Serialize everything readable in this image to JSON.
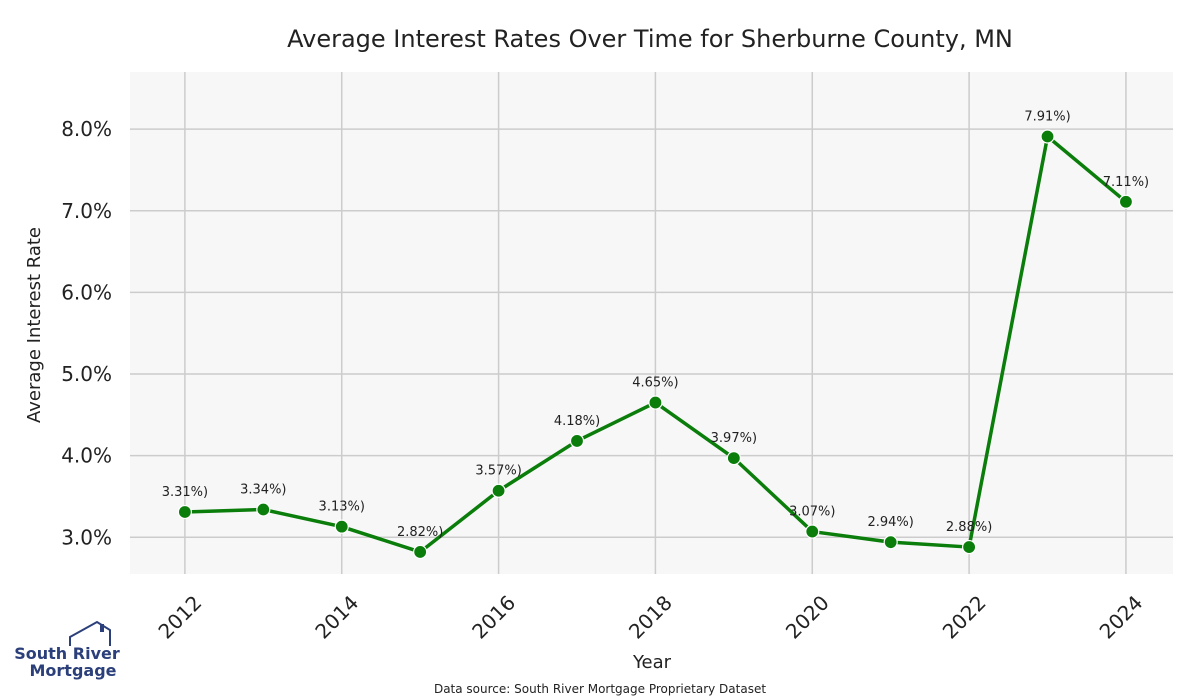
{
  "chart_data": {
    "type": "line",
    "title": "Average Interest Rates Over Time for Sherburne County, MN",
    "xlabel": "Year",
    "ylabel": "Average Interest Rate",
    "x": [
      2012,
      2013,
      2014,
      2015,
      2016,
      2017,
      2018,
      2019,
      2020,
      2021,
      2022,
      2023,
      2024
    ],
    "series": [
      {
        "values": [
          3.31,
          3.34,
          3.13,
          2.82,
          3.57,
          4.18,
          4.65,
          3.97,
          3.07,
          2.94,
          2.88,
          7.91,
          7.11
        ],
        "labels": [
          "3.31%)",
          "3.34%)",
          "3.13%)",
          "2.82%)",
          "3.57%)",
          "4.18%)",
          "4.65%)",
          "3.97%)",
          "3.07%)",
          "2.94%)",
          "2.88%)",
          "7.91%)",
          "7.11%)"
        ],
        "color": "#0a7d0a"
      }
    ],
    "xticks": [
      2012,
      2014,
      2016,
      2018,
      2020,
      2022,
      2024
    ],
    "xtick_labels": [
      "2012",
      "2014",
      "2016",
      "2018",
      "2020",
      "2022",
      "2024"
    ],
    "yticks": [
      3.0,
      4.0,
      5.0,
      6.0,
      7.0,
      8.0
    ],
    "ytick_labels": [
      "3.0%",
      "4.0%",
      "5.0%",
      "6.0%",
      "7.0%",
      "8.0%"
    ],
    "xlim": [
      2011.3,
      2024.6
    ],
    "ylim": [
      2.55,
      8.7
    ],
    "grid": true,
    "background": "#f7f7f7",
    "grid_color": "#cccccc"
  },
  "footer": {
    "source": "Data source: South River Mortgage Proprietary Dataset"
  },
  "logo": {
    "line1": "South River",
    "line2": "Mortgage",
    "color": "#2b3f7a"
  }
}
